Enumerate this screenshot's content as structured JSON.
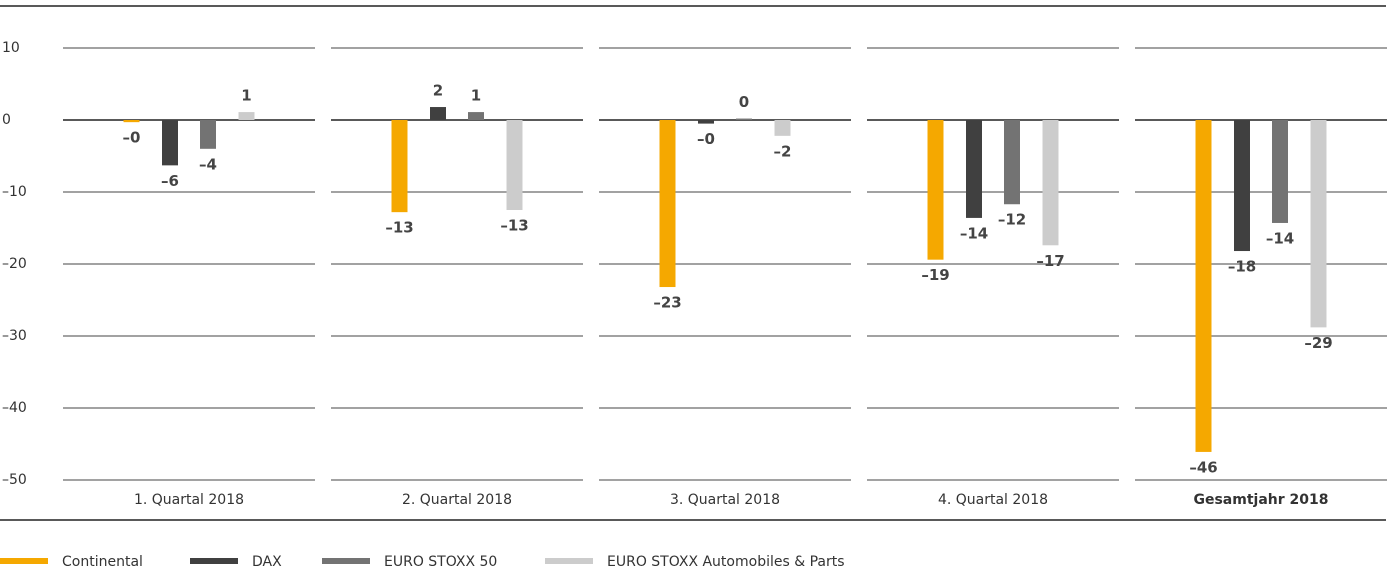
{
  "chart_data": {
    "type": "bar",
    "categories": [
      "1. Quartal 2018",
      "2. Quartal 2018",
      "3. Quartal 2018",
      "4. Quartal 2018",
      "Gesamtjahr 2018"
    ],
    "series": [
      {
        "name": "Continental",
        "color": "#f5a800",
        "values": [
          -0.3,
          -12.8,
          -23.2,
          -19.4,
          -46.1
        ],
        "value_labels": [
          "–0",
          "–13",
          "–23",
          "–19",
          "–46"
        ]
      },
      {
        "name": "DAX",
        "color": "#404040",
        "values": [
          -6.3,
          1.8,
          -0.5,
          -13.6,
          -18.2
        ],
        "value_labels": [
          "–6",
          "2",
          "–0",
          "–14",
          "–18"
        ]
      },
      {
        "name": "EURO STOXX 50",
        "color": "#737373",
        "values": [
          -4.0,
          1.1,
          0.2,
          -11.7,
          -14.3
        ],
        "value_labels": [
          "–4",
          "1",
          "0",
          "–12",
          "–14"
        ]
      },
      {
        "name": "EURO STOXX Automobiles & Parts",
        "color": "#cccccc",
        "values": [
          1.1,
          -12.5,
          -2.2,
          -17.4,
          -28.8
        ],
        "value_labels": [
          "1",
          "–13",
          "–2",
          "–17",
          "–29"
        ]
      }
    ],
    "ylim": [
      -50,
      10
    ],
    "yticks": [
      10,
      0,
      {
        "value": -10,
        "label": "–10"
      },
      {
        "value": -20,
        "label": "–20"
      },
      {
        "value": -30,
        "label": "–30"
      },
      {
        "value": -40,
        "label": "–40"
      },
      {
        "value": -50,
        "label": "–50"
      }
    ]
  }
}
